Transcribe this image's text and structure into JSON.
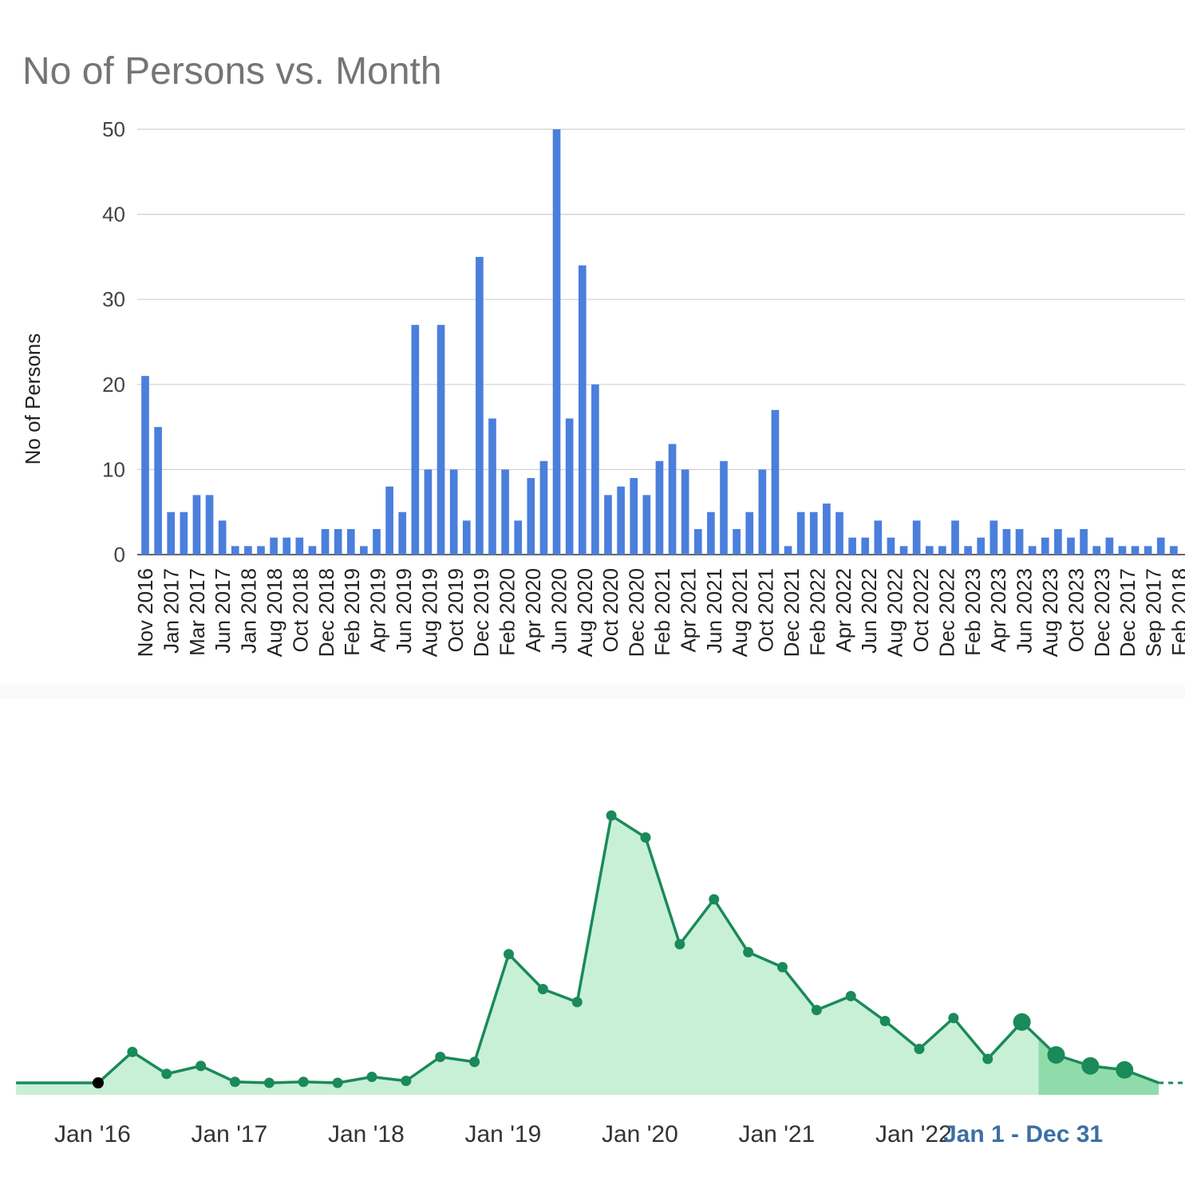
{
  "chart_data": [
    {
      "type": "bar",
      "title": "No of Persons vs. Month",
      "xlabel": "",
      "ylabel": "No of Persons",
      "ylim": [
        0,
        50
      ],
      "yticks": [
        "0",
        "10",
        "20",
        "30",
        "40",
        "50"
      ],
      "grid": true,
      "color": "#4a7fdc",
      "values": [
        21,
        15,
        5,
        5,
        7,
        7,
        4,
        1,
        1,
        1,
        2,
        2,
        2,
        1,
        3,
        3,
        3,
        1,
        3,
        8,
        5,
        27,
        10,
        27,
        10,
        4,
        35,
        16,
        10,
        4,
        9,
        11,
        50,
        16,
        34,
        20,
        7,
        8,
        9,
        7,
        11,
        13,
        10,
        3,
        5,
        11,
        3,
        5,
        10,
        17,
        1,
        5,
        5,
        6,
        5,
        2,
        2,
        4,
        2,
        1,
        4,
        1,
        1,
        4,
        1,
        2,
        4,
        3,
        3,
        1,
        2,
        3,
        2,
        3,
        1,
        2,
        1,
        1,
        1,
        2,
        1
      ],
      "tick_labels": [
        "Nov 2016",
        "Jan 2017",
        "Mar 2017",
        "Jun 2017",
        "Jan 2018",
        "Aug 2018",
        "Oct 2018",
        "Dec 2018",
        "Feb 2019",
        "Apr 2019",
        "Jun 2019",
        "Aug 2019",
        "Oct 2019",
        "Dec 2019",
        "Feb 2020",
        "Apr 2020",
        "Jun 2020",
        "Aug 2020",
        "Oct 2020",
        "Dec 2020",
        "Feb 2021",
        "Apr 2021",
        "Jun 2021",
        "Aug 2021",
        "Oct 2021",
        "Dec 2021",
        "Feb 2022",
        "Apr 2022",
        "Jun 2022",
        "Aug 2022",
        "Oct 2022",
        "Dec 2022",
        "Feb 2023",
        "Apr 2023",
        "Jun 2023",
        "Aug 2023",
        "Oct 2023",
        "Dec 2023",
        "Dec 2017",
        "Sep 2017",
        "Feb 2018"
      ]
    },
    {
      "type": "area",
      "title": "",
      "xlabel": "",
      "ylabel": "",
      "xtick_labels": [
        "Jan '16",
        "Jan '17",
        "Jan '18",
        "Jan '19",
        "Jan '20",
        "Jan '21",
        "Jan '22"
      ],
      "xrange_label": "Jan 1 - Dec 31",
      "line_color": "#1a8a5a",
      "fill_color": "#c8f0d6",
      "highlight_fill_color": "#8fdcaa",
      "x": [
        2015.4,
        2016.0,
        2016.25,
        2016.5,
        2016.75,
        2017.0,
        2017.25,
        2017.5,
        2017.75,
        2018.0,
        2018.25,
        2018.5,
        2018.75,
        2019.0,
        2019.25,
        2019.5,
        2019.75,
        2020.0,
        2020.25,
        2020.5,
        2020.75,
        2021.0,
        2021.25,
        2021.5,
        2021.75,
        2022.0,
        2022.25,
        2022.5,
        2022.75,
        2023.0,
        2023.25,
        2023.5,
        2023.75,
        2024.0
      ],
      "y": [
        0,
        0,
        3.1,
        0.9,
        1.7,
        0.1,
        0,
        0.1,
        0,
        0.6,
        0.2,
        2.6,
        2.1,
        12.9,
        9.4,
        8.1,
        26.8,
        24.6,
        13.9,
        18.4,
        13.1,
        11.6,
        7.3,
        8.7,
        6.2,
        3.4,
        6.5,
        2.4,
        6.1,
        2.8,
        1.7,
        1.3,
        0,
        0
      ],
      "point_style": [
        "none",
        "black",
        "small",
        "small",
        "small",
        "small",
        "small",
        "small",
        "small",
        "small",
        "small",
        "small",
        "small",
        "small",
        "small",
        "small",
        "small",
        "small",
        "small",
        "small",
        "small",
        "small",
        "small",
        "small",
        "small",
        "small",
        "small",
        "small",
        "large",
        "large",
        "large",
        "large",
        "none",
        "small"
      ],
      "highlight_range": [
        2023.0,
        2024.0
      ]
    }
  ]
}
